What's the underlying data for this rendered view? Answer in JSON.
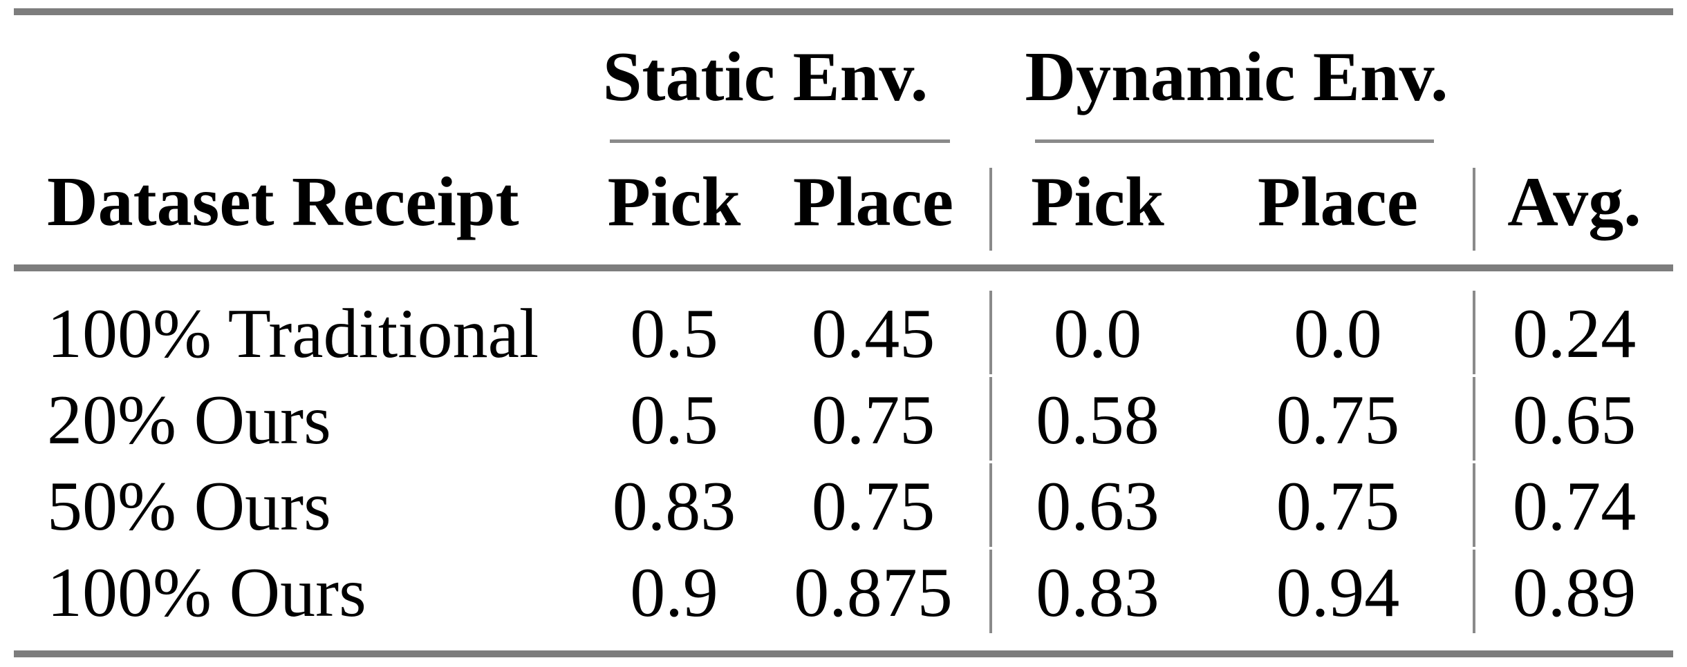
{
  "table": {
    "groups": {
      "static": "Static Env.",
      "dynamic": "Dynamic Env."
    },
    "headers": {
      "dataset": "Dataset Receipt",
      "static_pick": "Pick",
      "static_place": "Place",
      "dynamic_pick": "Pick",
      "dynamic_place": "Place",
      "avg": "Avg."
    },
    "rows": [
      {
        "label": "100% Traditional",
        "static_pick": "0.5",
        "static_place": "0.45",
        "dynamic_pick": "0.0",
        "dynamic_place": "0.0",
        "avg": "0.24"
      },
      {
        "label": "20% Ours",
        "static_pick": "0.5",
        "static_place": "0.75",
        "dynamic_pick": "0.58",
        "dynamic_place": "0.75",
        "avg": "0.65"
      },
      {
        "label": "50% Ours",
        "static_pick": "0.83",
        "static_place": "0.75",
        "dynamic_pick": "0.63",
        "dynamic_place": "0.75",
        "avg": "0.74"
      },
      {
        "label": "100% Ours",
        "static_pick": "0.9",
        "static_place": "0.875",
        "dynamic_pick": "0.83",
        "dynamic_place": "0.94",
        "avg": "0.89"
      }
    ],
    "colors": {
      "rule_heavy": "#7d7d7d",
      "rule_light": "#8a8a8a",
      "text": "#000000"
    }
  },
  "chart_data": {
    "type": "table",
    "title": "",
    "column_groups": [
      "Static Env.",
      "Dynamic Env."
    ],
    "columns": [
      "Dataset Receipt",
      "Static Env. Pick",
      "Static Env. Place",
      "Dynamic Env. Pick",
      "Dynamic Env. Place",
      "Avg."
    ],
    "rows": [
      [
        "100% Traditional",
        0.5,
        0.45,
        0.0,
        0.0,
        0.24
      ],
      [
        "20% Ours",
        0.5,
        0.75,
        0.58,
        0.75,
        0.65
      ],
      [
        "50% Ours",
        0.83,
        0.75,
        0.63,
        0.75,
        0.74
      ],
      [
        "100% Ours",
        0.9,
        0.875,
        0.83,
        0.94,
        0.89
      ]
    ]
  }
}
